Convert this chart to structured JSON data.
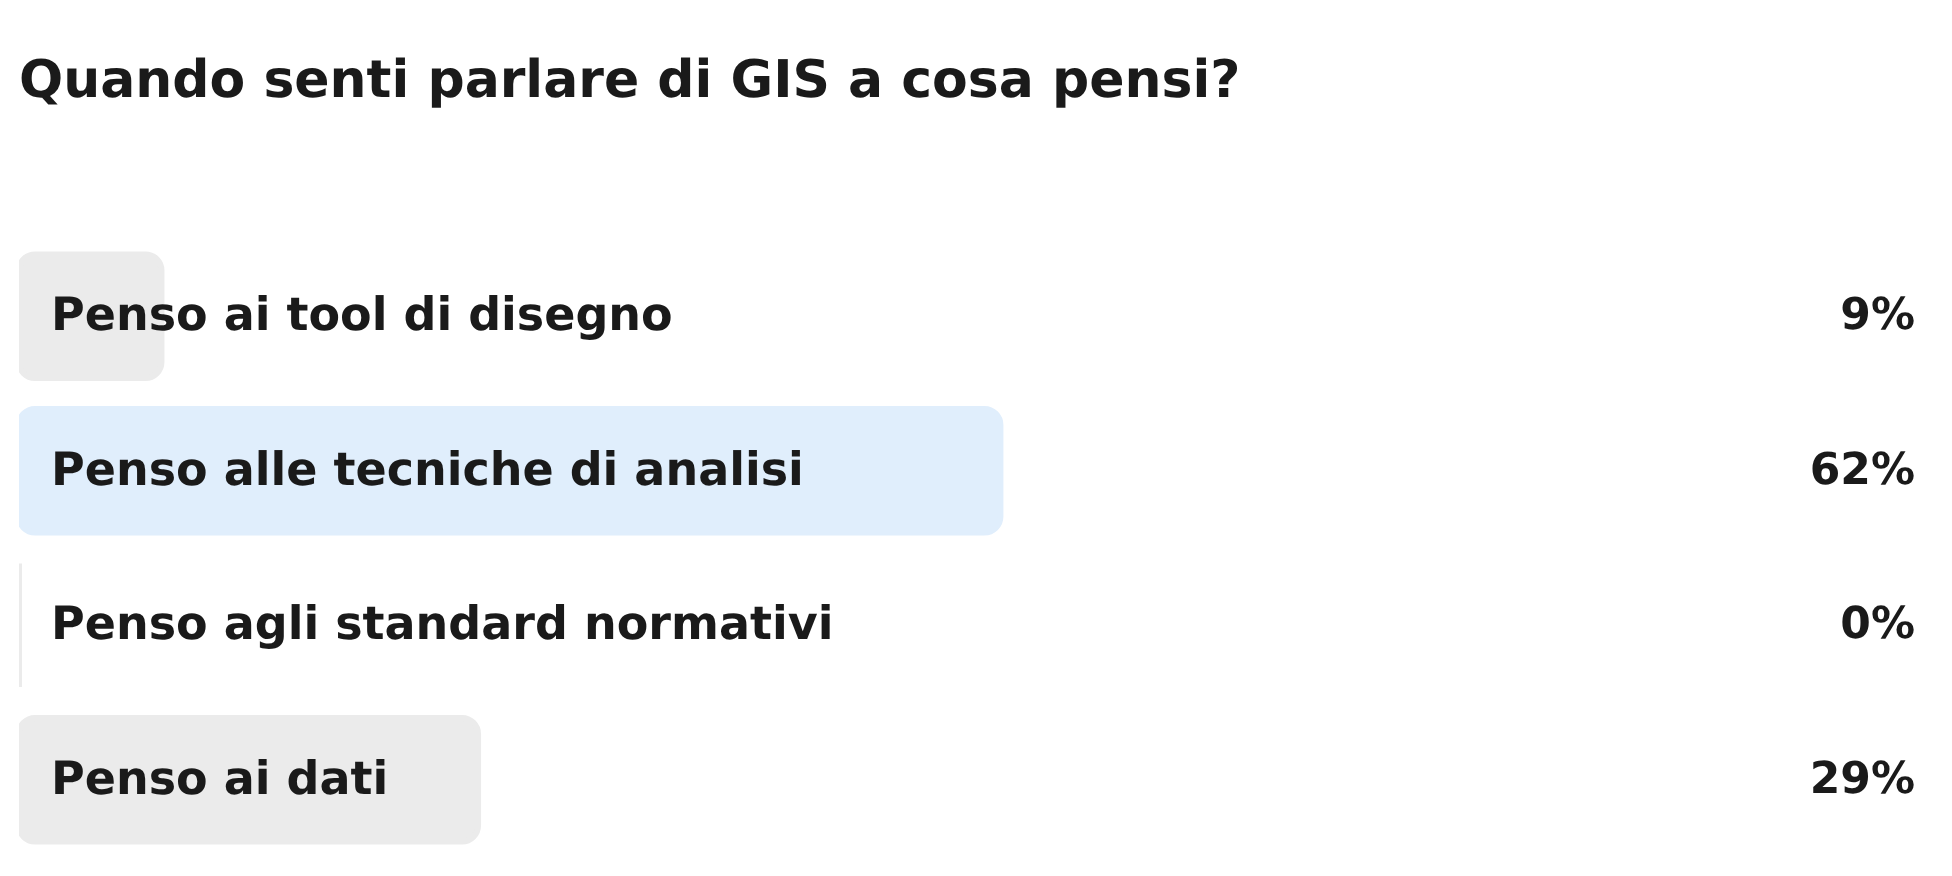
{
  "chart_data": {
    "type": "bar",
    "orientation": "horizontal",
    "title": "Quando senti parlare di GIS a cosa pensi?",
    "categories": [
      "Penso ai tool di disegno",
      "Penso alle tecniche di analisi",
      "Penso agli standard normativi",
      "Penso ai dati"
    ],
    "values": [
      9,
      62,
      0,
      29
    ],
    "colors": [
      "#ebebeb",
      "#e0eefc",
      "#ebebeb",
      "#ebebeb"
    ],
    "value_labels": [
      "9%",
      "62%",
      "0%",
      "29%"
    ],
    "grid": false,
    "tick_labels": false
  }
}
